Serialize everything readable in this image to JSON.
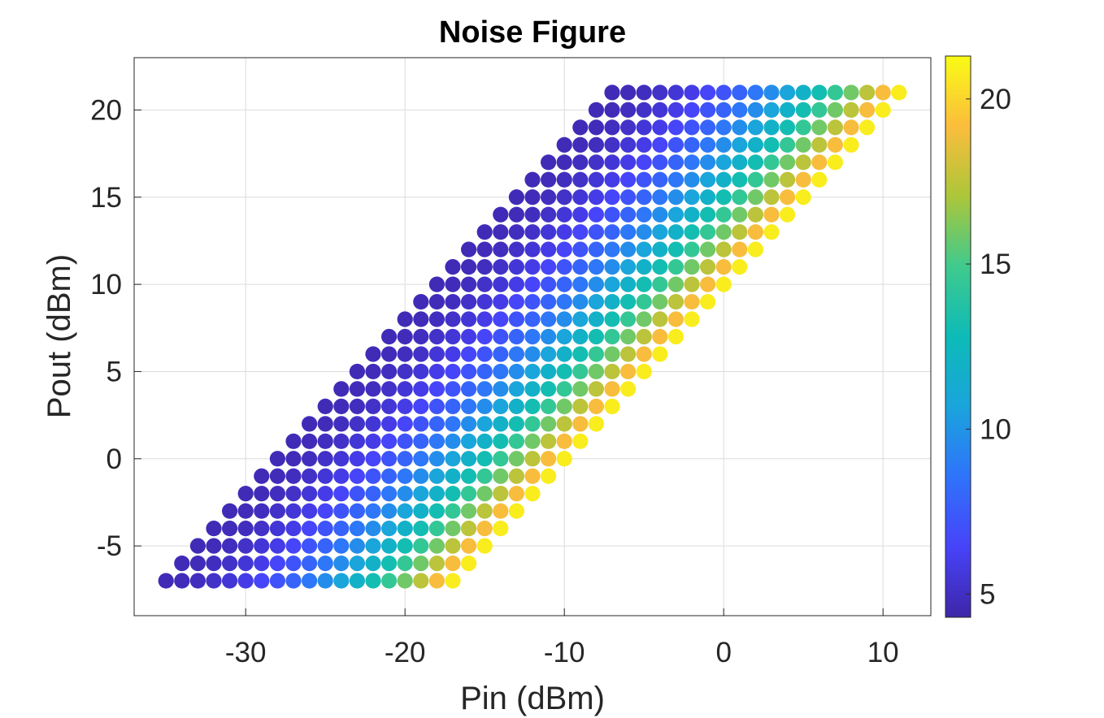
{
  "chart_data": {
    "type": "scatter",
    "title": "Noise Figure",
    "xlabel": "Pin (dBm)",
    "ylabel": "Pout (dBm)",
    "xlim": [
      -37,
      13
    ],
    "ylim": [
      -9,
      23
    ],
    "xticks": [
      "-30",
      "-20",
      "-10",
      "0",
      "10"
    ],
    "yticks": [
      "-5",
      "0",
      "5",
      "10",
      "15",
      "20"
    ],
    "grid": true,
    "colorbar": {
      "range": [
        4.3,
        21.3
      ],
      "ticks": [
        "5",
        "10",
        "15",
        "20"
      ],
      "colormap": "parula",
      "colors": [
        "#3e26a8",
        "#4743f9",
        "#2f73fb",
        "#1aa4dc",
        "#0dbbb8",
        "#3fca8d",
        "#acc63a",
        "#fbbd3c",
        "#f9fb15"
      ]
    },
    "marker_color_rule": "Noise figure increases with (Pin - Pout + 30); each row spans Pin from Pout-28 to Pout-10",
    "rows": [
      {
        "pout": -7,
        "pin_min": -35,
        "pin_max": -17
      },
      {
        "pout": -6,
        "pin_min": -34,
        "pin_max": -16
      },
      {
        "pout": -5,
        "pin_min": -33,
        "pin_max": -15
      },
      {
        "pout": -4,
        "pin_min": -32,
        "pin_max": -14
      },
      {
        "pout": -3,
        "pin_min": -31,
        "pin_max": -13
      },
      {
        "pout": -2,
        "pin_min": -30,
        "pin_max": -12
      },
      {
        "pout": -1,
        "pin_min": -29,
        "pin_max": -11
      },
      {
        "pout": 0,
        "pin_min": -28,
        "pin_max": -10
      },
      {
        "pout": 1,
        "pin_min": -27,
        "pin_max": -9
      },
      {
        "pout": 2,
        "pin_min": -26,
        "pin_max": -8
      },
      {
        "pout": 3,
        "pin_min": -25,
        "pin_max": -7
      },
      {
        "pout": 4,
        "pin_min": -24,
        "pin_max": -6
      },
      {
        "pout": 5,
        "pin_min": -23,
        "pin_max": -5
      },
      {
        "pout": 6,
        "pin_min": -22,
        "pin_max": -4
      },
      {
        "pout": 7,
        "pin_min": -21,
        "pin_max": -3
      },
      {
        "pout": 8,
        "pin_min": -20,
        "pin_max": -2
      },
      {
        "pout": 9,
        "pin_min": -19,
        "pin_max": -1
      },
      {
        "pout": 10,
        "pin_min": -18,
        "pin_max": 0
      },
      {
        "pout": 11,
        "pin_min": -17,
        "pin_max": 1
      },
      {
        "pout": 12,
        "pin_min": -16,
        "pin_max": 2
      },
      {
        "pout": 13,
        "pin_min": -15,
        "pin_max": 3
      },
      {
        "pout": 14,
        "pin_min": -14,
        "pin_max": 4
      },
      {
        "pout": 15,
        "pin_min": -13,
        "pin_max": 5
      },
      {
        "pout": 16,
        "pin_min": -12,
        "pin_max": 6
      },
      {
        "pout": 17,
        "pin_min": -11,
        "pin_max": 7
      },
      {
        "pout": 18,
        "pin_min": -10,
        "pin_max": 8
      },
      {
        "pout": 19,
        "pin_min": -9,
        "pin_max": 9
      },
      {
        "pout": 20,
        "pin_min": -8,
        "pin_max": 10
      },
      {
        "pout": 21,
        "pin_min": -7,
        "pin_max": 11
      }
    ]
  }
}
